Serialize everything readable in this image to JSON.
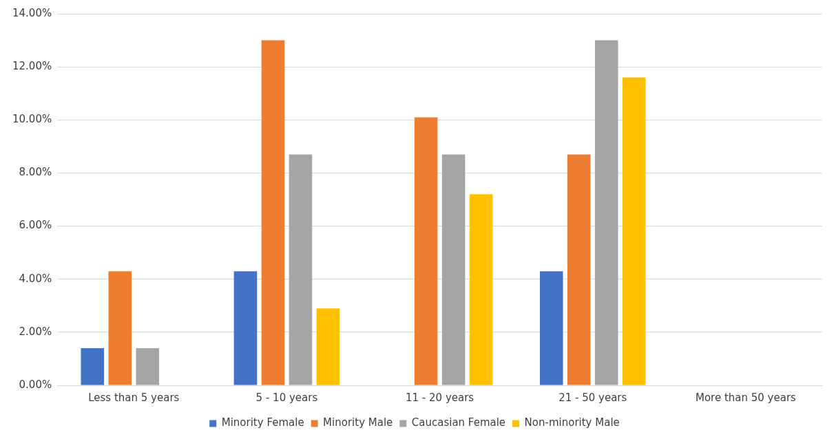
{
  "chart_data": {
    "type": "bar",
    "categories": [
      "Less than 5 years",
      "5 - 10 years",
      "11 - 20 years",
      "21 - 50 years",
      "More than 50 years"
    ],
    "series": [
      {
        "name": "Minority Female",
        "color": "#4472c4",
        "values": [
          1.4,
          4.3,
          0,
          4.3,
          0
        ]
      },
      {
        "name": "Minority Male",
        "color": "#ed7d31",
        "values": [
          4.3,
          13.0,
          10.1,
          8.7,
          0
        ]
      },
      {
        "name": "Caucasian Female",
        "color": "#a5a5a5",
        "values": [
          1.4,
          8.7,
          8.7,
          13.0,
          0
        ]
      },
      {
        "name": "Non-minority Male",
        "color": "#ffc000",
        "values": [
          0,
          2.9,
          7.2,
          11.6,
          0
        ]
      }
    ],
    "ylim": [
      0,
      14
    ],
    "yticks": [
      {
        "value": 0,
        "label": "0.00%"
      },
      {
        "value": 2,
        "label": "2.00%"
      },
      {
        "value": 4,
        "label": "4.00%"
      },
      {
        "value": 6,
        "label": "6.00%"
      },
      {
        "value": 8,
        "label": "8.00%"
      },
      {
        "value": 10,
        "label": "10.00%"
      },
      {
        "value": 12,
        "label": "12.00%"
      },
      {
        "value": 14,
        "label": "14.00%"
      }
    ],
    "grid": "y",
    "legend": "bottom"
  }
}
